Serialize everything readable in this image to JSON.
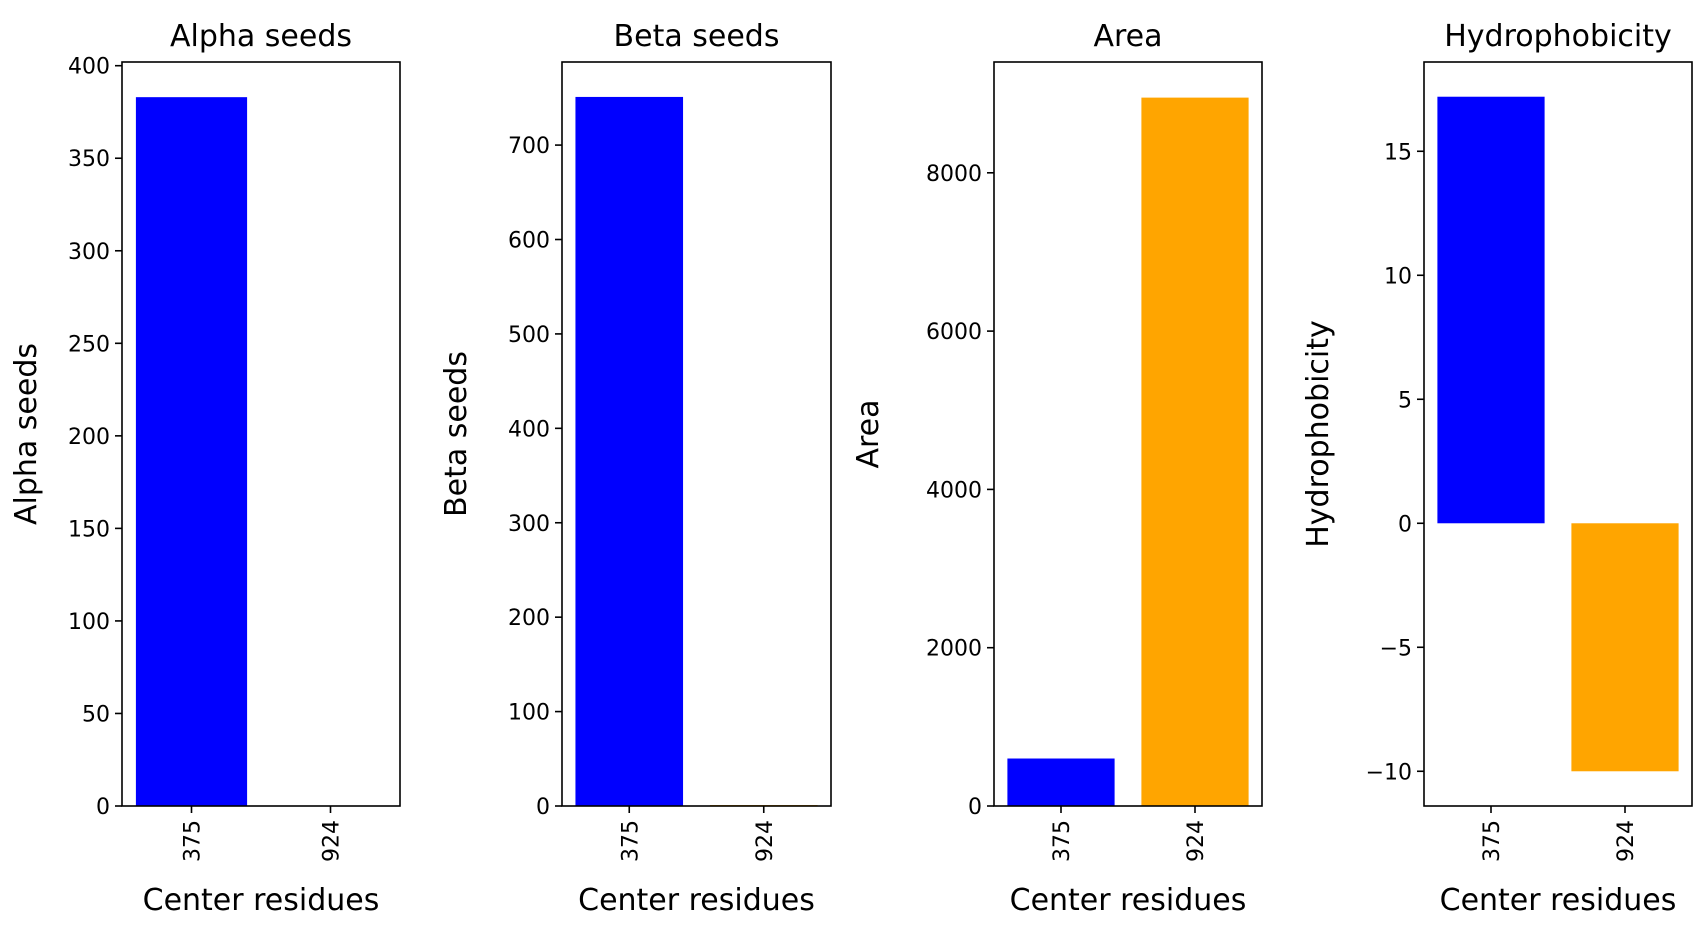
{
  "figure": {
    "colors": {
      "blue": "#0000ff",
      "orange": "#ffa500",
      "axis": "#000000"
    }
  },
  "chart_data": [
    {
      "type": "bar",
      "title": "Alpha seeds",
      "xlabel": "Center residues",
      "ylabel": "Alpha seeds",
      "categories": [
        "375",
        "924"
      ],
      "values": [
        383,
        0
      ],
      "colors": [
        "#0000ff",
        "#ffa500"
      ],
      "ylim": [
        0,
        402
      ],
      "yticks": [
        0,
        50,
        100,
        150,
        200,
        250,
        300,
        350,
        400
      ],
      "ytick_labels": [
        "0",
        "50",
        "100",
        "150",
        "200",
        "250",
        "300",
        "350",
        "400"
      ],
      "grid": false,
      "legend": "none"
    },
    {
      "type": "bar",
      "title": "Beta seeds",
      "xlabel": "Center residues",
      "ylabel": "Beta seeds",
      "categories": [
        "375",
        "924"
      ],
      "values": [
        751,
        1
      ],
      "colors": [
        "#0000ff",
        "#ffa500"
      ],
      "ylim": [
        0,
        788
      ],
      "yticks": [
        0,
        100,
        200,
        300,
        400,
        500,
        600,
        700
      ],
      "ytick_labels": [
        "0",
        "100",
        "200",
        "300",
        "400",
        "500",
        "600",
        "700"
      ],
      "grid": false,
      "legend": "none"
    },
    {
      "type": "bar",
      "title": "Area",
      "xlabel": "Center residues",
      "ylabel": "Area",
      "categories": [
        "375",
        "924"
      ],
      "values": [
        600,
        8950
      ],
      "colors": [
        "#0000ff",
        "#ffa500"
      ],
      "ylim": [
        0,
        9400
      ],
      "yticks": [
        0,
        2000,
        4000,
        6000,
        8000
      ],
      "ytick_labels": [
        "0",
        "2000",
        "4000",
        "6000",
        "8000"
      ],
      "grid": false,
      "legend": "none"
    },
    {
      "type": "bar",
      "title": "Hydrophobicity",
      "xlabel": "Center residues",
      "ylabel": "Hydrophobicity",
      "categories": [
        "375",
        "924"
      ],
      "values": [
        17.2,
        -10
      ],
      "colors": [
        "#0000ff",
        "#ffa500"
      ],
      "ylim": [
        -11.4,
        18.6
      ],
      "yticks": [
        -10,
        -5,
        0,
        5,
        10,
        15
      ],
      "ytick_labels": [
        "−10",
        "−5",
        "0",
        "5",
        "10",
        "15"
      ],
      "grid": false,
      "legend": "none"
    }
  ]
}
